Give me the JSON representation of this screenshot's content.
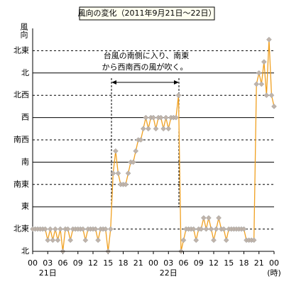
{
  "chart_data": {
    "type": "line",
    "title": "風向の変化（2011年9月21日～22日）",
    "ylabel": "風向",
    "xlabel": "(時)",
    "annotations": [
      "台風の南側に入り、南東",
      "から西南西の風が吹く。"
    ],
    "xlim": [
      0,
      48
    ],
    "ylim": [
      0,
      10
    ],
    "xticks": [
      {
        "value": 0,
        "label": "00"
      },
      {
        "value": 3,
        "label": "03"
      },
      {
        "value": 6,
        "label": "06"
      },
      {
        "value": 9,
        "label": "09"
      },
      12,
      15,
      18,
      21,
      {
        "value": 24,
        "label": "00"
      },
      {
        "value": 27,
        "label": "03"
      },
      {
        "value": 30,
        "label": "06"
      },
      {
        "value": 33,
        "label": "09"
      },
      {
        "value": 36,
        "label": "12"
      },
      {
        "value": 39,
        "label": "15"
      },
      {
        "value": 42,
        "label": "18"
      },
      {
        "value": 45,
        "label": "21"
      },
      {
        "value": 48,
        "label": "00"
      }
    ],
    "xtick_sublabels": [
      {
        "value": 3,
        "label": "21日"
      },
      {
        "value": 27,
        "label": "22日"
      }
    ],
    "yticks": [
      {
        "value": 0,
        "label": "北"
      },
      {
        "value": 1,
        "label": "北東"
      },
      {
        "value": 2,
        "label": "東"
      },
      {
        "value": 3,
        "label": "南東"
      },
      {
        "value": 4,
        "label": "南"
      },
      {
        "value": 5,
        "label": "南西"
      },
      {
        "value": 6,
        "label": "西"
      },
      {
        "value": 7,
        "label": "北西"
      },
      {
        "value": 8,
        "label": "北"
      },
      {
        "value": 9,
        "label": "北東"
      }
    ],
    "series": [
      {
        "color": "#f0a020",
        "marker_color": "#c0b4aa",
        "x": [
          0,
          0.5,
          1,
          1.5,
          2,
          2.5,
          3,
          3.5,
          4,
          4.5,
          5,
          5.5,
          6,
          6.5,
          7,
          7.5,
          8,
          8.5,
          9,
          9.5,
          10,
          10.5,
          11,
          11.5,
          12,
          12.5,
          13,
          13.5,
          14,
          14.5,
          15,
          15.5,
          16,
          16.5,
          17,
          17.5,
          18,
          18.5,
          19,
          19.5,
          20,
          20.5,
          21,
          21.5,
          22,
          22.5,
          23,
          23.5,
          24,
          24.5,
          25,
          25.5,
          26,
          26.5,
          27,
          27.5,
          28,
          28.5,
          29,
          29.5,
          30,
          30.5,
          31,
          31.5,
          32,
          32.5,
          33,
          33.5,
          34,
          34.5,
          35,
          35.5,
          36,
          36.5,
          37,
          37.5,
          38,
          38.5,
          39,
          39.5,
          40,
          40.5,
          41,
          41.5,
          42,
          42.5,
          43,
          43.5,
          44,
          44.5,
          45,
          45.5,
          46,
          46.5,
          47,
          47.5,
          48
        ],
        "values": [
          1,
          1,
          1,
          1,
          1,
          1,
          0.5,
          1,
          0.5,
          1,
          0.5,
          1,
          0,
          1,
          1,
          0.5,
          1,
          1,
          1,
          1,
          1,
          0.5,
          1,
          1,
          1,
          1,
          0.5,
          1,
          1,
          1,
          0,
          1,
          3.5,
          4.5,
          3.5,
          3,
          3,
          3,
          3.5,
          4,
          4,
          4.5,
          5,
          5,
          5.5,
          6,
          5.5,
          6,
          6,
          5.5,
          6,
          6,
          5.5,
          6,
          5.5,
          6,
          6,
          6,
          7,
          0,
          0.5,
          1,
          1,
          1,
          1,
          0.5,
          1,
          1,
          1.5,
          1,
          1.5,
          1,
          0.5,
          1,
          1.5,
          1,
          1,
          0.5,
          1,
          1,
          1,
          1,
          1,
          1,
          1,
          0.5,
          0.5,
          0.5,
          0.5,
          7.5,
          8,
          7.5,
          8.5,
          7,
          9.5,
          7,
          6.5
        ]
      }
    ]
  }
}
